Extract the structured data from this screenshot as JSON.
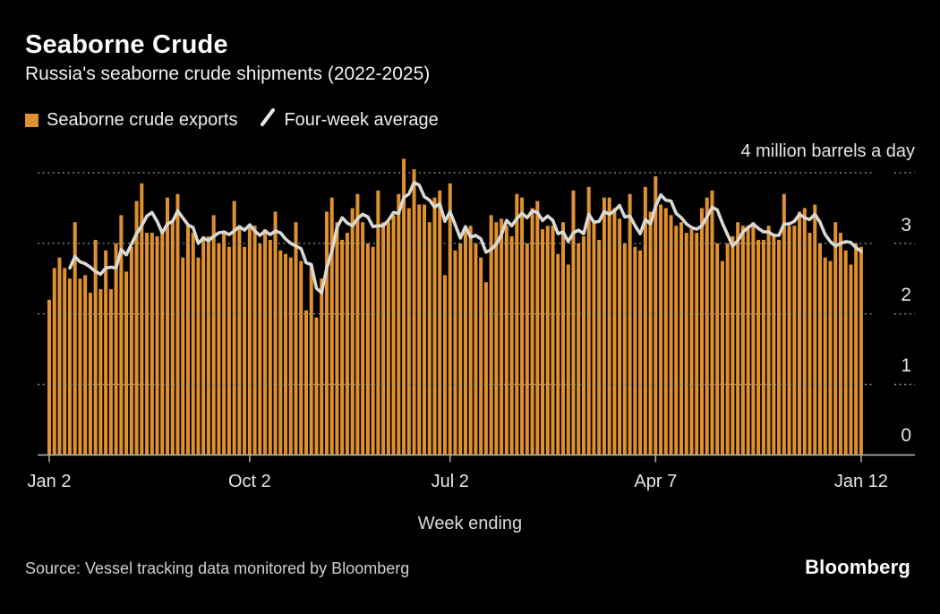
{
  "header": {
    "title": "Seaborne Crude",
    "subtitle": "Russia's seaborne crude shipments (2022-2025)"
  },
  "legend": {
    "bar_label": "Seaborne crude exports",
    "line_label": "Four-week average"
  },
  "axis": {
    "unit_label": "4 million barrels a day",
    "x_label": "Week ending",
    "y_tick_labels": [
      "3",
      "2",
      "1",
      "0"
    ]
  },
  "footer": {
    "source": "Source: Vessel tracking data monitored by Bloomberg",
    "logo": "Bloomberg"
  },
  "colors": {
    "background": "#000000",
    "bar": "#E0912F",
    "average_line": "#D9D9D5",
    "grid": "#8e8e8e",
    "axis_line": "#ababab",
    "text": "#ffffff"
  },
  "chart_data": {
    "type": "bar",
    "title": "Seaborne Crude",
    "subtitle": "Russia's seaborne crude shipments (2022-2025)",
    "xlabel": "Week ending",
    "ylabel": "million barrels a day",
    "ylim": [
      0,
      4.3
    ],
    "y_gridlines": [
      4,
      3,
      2,
      1
    ],
    "grid": "dotted horizontal",
    "legend_position": "top-left",
    "x_ticks": [
      {
        "index": 0,
        "label": "Jan 2"
      },
      {
        "index": 39,
        "label": "Oct 2"
      },
      {
        "index": 78,
        "label": "Jul 2"
      },
      {
        "index": 118,
        "label": "Apr 7"
      },
      {
        "index": 158,
        "label": "Jan 12"
      }
    ],
    "x_note": "159 weekly observations, week-ending Jan 2 2022 through Jan 12 2025",
    "series": [
      {
        "name": "Seaborne crude exports",
        "type": "bar",
        "color": "#E0912F",
        "values": [
          2.2,
          2.65,
          2.8,
          2.65,
          2.5,
          3.3,
          2.5,
          2.55,
          2.3,
          3.05,
          2.35,
          2.9,
          2.35,
          3.0,
          3.4,
          2.6,
          2.95,
          3.6,
          3.85,
          3.15,
          3.15,
          3.1,
          3.2,
          3.65,
          3.3,
          3.7,
          2.8,
          3.25,
          3.15,
          2.8,
          3.1,
          3.1,
          3.4,
          3.0,
          3.15,
          2.95,
          3.6,
          3.25,
          2.95,
          3.25,
          3.25,
          3.0,
          3.2,
          3.05,
          3.45,
          2.9,
          2.85,
          2.8,
          3.3,
          2.75,
          2.05,
          2.7,
          1.95,
          2.5,
          3.45,
          3.65,
          3.3,
          3.05,
          3.15,
          3.5,
          3.7,
          3.3,
          3.0,
          2.95,
          3.75,
          3.3,
          3.3,
          3.4,
          3.7,
          4.2,
          3.5,
          4.05,
          3.55,
          3.55,
          3.3,
          3.65,
          3.75,
          2.55,
          3.85,
          2.9,
          3.0,
          3.2,
          3.25,
          3.0,
          2.8,
          2.45,
          3.4,
          3.3,
          3.35,
          3.25,
          3.1,
          3.7,
          3.65,
          3.0,
          3.5,
          3.6,
          3.2,
          3.25,
          3.25,
          2.85,
          3.3,
          2.7,
          3.75,
          3.0,
          3.1,
          3.8,
          3.3,
          3.05,
          3.65,
          3.65,
          3.5,
          3.35,
          3.0,
          3.7,
          2.95,
          2.9,
          3.8,
          3.45,
          3.95,
          3.55,
          3.5,
          3.4,
          3.25,
          3.3,
          3.15,
          3.2,
          3.15,
          3.5,
          3.65,
          3.75,
          3.0,
          2.75,
          3.0,
          3.1,
          3.3,
          3.25,
          3.25,
          3.3,
          3.05,
          3.05,
          3.25,
          3.1,
          3.05,
          3.7,
          3.25,
          3.25,
          3.45,
          3.5,
          3.15,
          3.55,
          3.0,
          2.8,
          2.75,
          3.3,
          3.15,
          2.9,
          2.7,
          3.0,
          2.95
        ]
      },
      {
        "name": "Four-week average",
        "type": "line",
        "color": "#D9D9D5",
        "derivation": "4-week rolling mean of Seaborne crude exports",
        "start_index": 4
      }
    ]
  }
}
